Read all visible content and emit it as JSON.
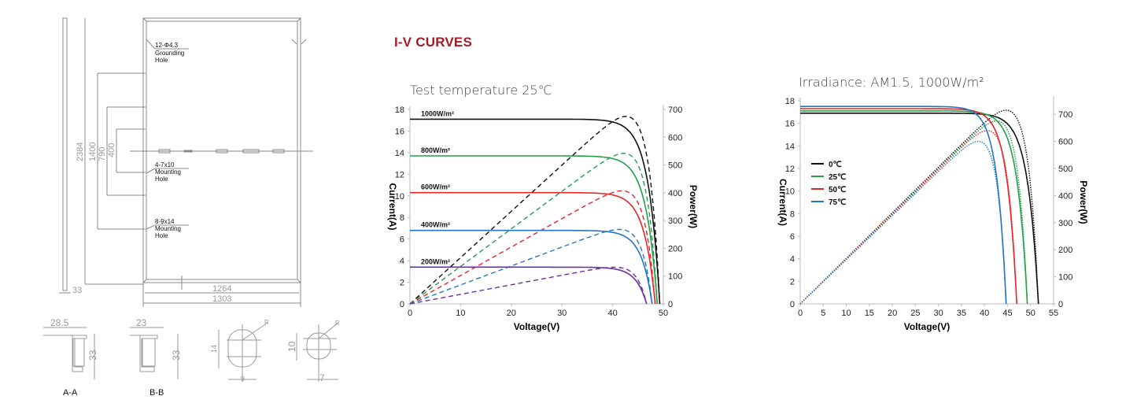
{
  "section_title": "I-V CURVES",
  "drawing": {
    "annotations": [
      {
        "line1": "12-Φ4.3",
        "line2": "Grounding",
        "line3": "Hole"
      },
      {
        "line1": "4-7x10",
        "line2": "Mounting",
        "line3": "Hole"
      },
      {
        "line1": "8-9x14",
        "line2": "Mounting",
        "line3": "Hole"
      }
    ],
    "dimensions": {
      "height": "2384",
      "d1400": "1400",
      "d790": "790",
      "d400": "400",
      "frame_depth": "33",
      "inner_width": "1264",
      "outer_width": "1303",
      "section_a_label": "A",
      "section_b_label": "B"
    },
    "sections": [
      {
        "label": "A-A",
        "width": "28.5",
        "height": "33"
      },
      {
        "label": "B-B",
        "width": "23",
        "height": "33"
      }
    ],
    "holes": [
      {
        "height": "14",
        "width": "9",
        "radius": "R"
      },
      {
        "height": "10",
        "width": "7",
        "radius": "R"
      }
    ]
  },
  "chart_data": [
    {
      "type": "line",
      "title": "Test temperature 25℃",
      "xlabel": "Voltage(V)",
      "ylabel": "Current(A)",
      "y2label": "Power(W)",
      "xlim": [
        0,
        50
      ],
      "ylim": [
        0,
        18
      ],
      "y2lim": [
        0,
        700
      ],
      "xticks": [
        0,
        10,
        20,
        30,
        40,
        50
      ],
      "yticks": [
        0,
        2,
        4,
        6,
        8,
        10,
        12,
        14,
        16,
        18
      ],
      "y2ticks": [
        0,
        100,
        200,
        300,
        400,
        500,
        600,
        700
      ],
      "grid": false,
      "legend": "inline labels",
      "series": [
        {
          "name": "1000W/m²",
          "color": "#111111",
          "isc": 17.1,
          "voc": 49.3,
          "vmp": 41.5,
          "pmax": 675
        },
        {
          "name": "800W/m²",
          "color": "#22a04b",
          "isc": 13.7,
          "voc": 48.8,
          "vmp": 41.3,
          "pmax": 542
        },
        {
          "name": "600W/m²",
          "color": "#e8262a",
          "isc": 10.3,
          "voc": 48.4,
          "vmp": 40.8,
          "pmax": 407
        },
        {
          "name": "400W/m²",
          "color": "#2475c4",
          "isc": 6.8,
          "voc": 47.8,
          "vmp": 40.8,
          "pmax": 268
        },
        {
          "name": "200W/m²",
          "color": "#6a2fa0",
          "isc": 3.4,
          "voc": 46.7,
          "vmp": 40.0,
          "pmax": 132
        }
      ],
      "line_styles": {
        "current": "solid",
        "power": "dashed"
      }
    },
    {
      "type": "line",
      "title": "Irradiance: AM1.5, 1000W/m²",
      "xlabel": "Voltage(V)",
      "ylabel": "Current(A)",
      "y2label": "Power(W)",
      "xlim": [
        0,
        55
      ],
      "ylim": [
        0,
        18
      ],
      "y2lim": [
        0,
        750
      ],
      "xticks": [
        0,
        5,
        10,
        15,
        20,
        25,
        30,
        35,
        40,
        45,
        50,
        55
      ],
      "yticks": [
        0,
        2,
        4,
        6,
        8,
        10,
        12,
        14,
        16,
        18
      ],
      "y2ticks": [
        0,
        100,
        200,
        300,
        400,
        500,
        600,
        700
      ],
      "grid": false,
      "legend_position": "upper left",
      "series": [
        {
          "name": "0℃",
          "color": "#111111",
          "isc": 16.9,
          "voc": 51.7,
          "vmp": 44.0,
          "pmax": 715
        },
        {
          "name": "25℃",
          "color": "#22a04b",
          "isc": 17.1,
          "voc": 49.3,
          "vmp": 41.5,
          "pmax": 675
        },
        {
          "name": "50℃",
          "color": "#e8262a",
          "isc": 17.3,
          "voc": 47.0,
          "vmp": 39.5,
          "pmax": 640
        },
        {
          "name": "75℃",
          "color": "#2475c4",
          "isc": 17.5,
          "voc": 44.7,
          "vmp": 36.5,
          "pmax": 600
        }
      ],
      "line_styles": {
        "current": "solid",
        "power": "dotted"
      }
    }
  ]
}
